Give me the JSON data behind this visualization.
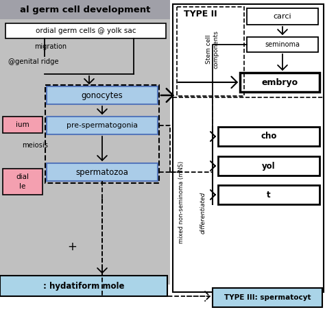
{
  "fig_w": 4.74,
  "fig_h": 4.74,
  "dpi": 100,
  "bg": "#ffffff",
  "left_bg": "#c0c0c0",
  "left_title_bg": "#a8a8a8",
  "blue_light": "#aacce8",
  "blue_box_ec": "#5577bb",
  "pink": "#f4a0b0",
  "bottom_blue": "#aad4e8",
  "type3_blue": "#aad4e8",
  "left_title": "al germ cell development",
  "primordial_text": "ordial germ cells @ yolk sac",
  "migration_text": "migration",
  "genital_text": "@genital ridge",
  "gonocytes_text": "gonocytes",
  "presperma_text": "pre-spermatogonia",
  "meiosis_text": "meiosis",
  "spermatozoa_text": "spermatozoa",
  "pink1_text": "ium",
  "pink2_line1": "dial",
  "pink2_line2": "le",
  "plus_text": "+",
  "bottom_left_text": ": hydatiform mole",
  "type2_text": "TYPE II",
  "carci_text": "carci",
  "seminoma_text": "seminoma",
  "embryo_text": "embryo",
  "cho_text": "cho",
  "yolk_text": "yol",
  "ter_text": "t",
  "mnS_text": "mixed non-seminoma (mNS)",
  "stem_text": "Stem cell\ncomponents",
  "diff_text": "differentiated",
  "type3_text": "TYPE III: spermatocyt"
}
